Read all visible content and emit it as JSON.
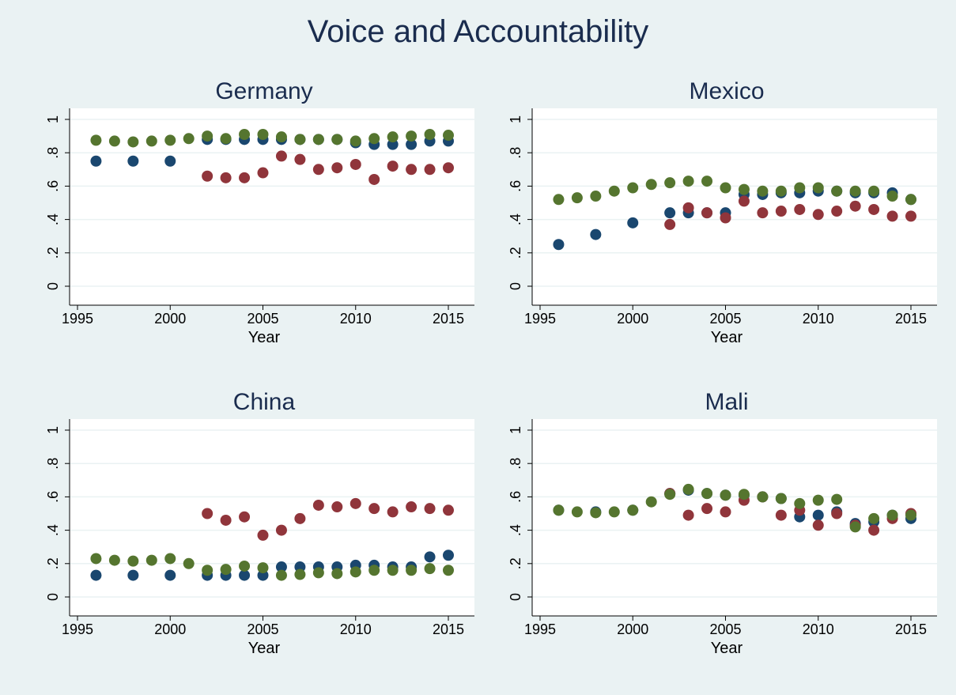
{
  "figure_title": "Voice and Accountability",
  "colors": {
    "background": "#eaf2f3",
    "plot_background": "#ffffff",
    "gridline": "#eaf2f3",
    "title_text": "#1a2c4e",
    "axis": "#000000"
  },
  "chart_data": [
    {
      "type": "scatter",
      "title": "Germany",
      "xlabel": "Year",
      "ylabel": "",
      "xlim": [
        1995,
        2015
      ],
      "ylim": [
        0,
        1
      ],
      "xticks": [
        1995,
        2000,
        2005,
        2010,
        2015
      ],
      "xtick_labels": [
        "1995",
        "2000",
        "2005",
        "2010",
        "2015"
      ],
      "yticks": [
        0,
        0.2,
        0.4,
        0.6,
        0.8,
        1
      ],
      "ytick_labels": [
        "0",
        ".2",
        ".4",
        ".6",
        ".8",
        "1"
      ],
      "grid": true,
      "series": [
        {
          "color": "#1a476f",
          "x": [
            1996,
            1998,
            2000,
            2002,
            2003,
            2004,
            2005,
            2006,
            2007,
            2008,
            2009,
            2010,
            2011,
            2012,
            2013,
            2014,
            2015
          ],
          "y": [
            0.75,
            0.75,
            0.75,
            0.88,
            0.88,
            0.88,
            0.88,
            0.88,
            0.88,
            0.88,
            0.88,
            0.86,
            0.85,
            0.85,
            0.85,
            0.87,
            0.87
          ]
        },
        {
          "color": "#90353b",
          "x": [
            2002,
            2003,
            2004,
            2005,
            2006,
            2007,
            2008,
            2009,
            2010,
            2011,
            2012,
            2013,
            2014,
            2015
          ],
          "y": [
            0.66,
            0.65,
            0.65,
            0.68,
            0.78,
            0.76,
            0.7,
            0.71,
            0.73,
            0.64,
            0.72,
            0.7,
            0.7,
            0.71
          ]
        },
        {
          "color": "#55752f",
          "x": [
            1996,
            1997,
            1998,
            1999,
            2000,
            2001,
            2002,
            2003,
            2004,
            2005,
            2006,
            2007,
            2008,
            2009,
            2010,
            2011,
            2012,
            2013,
            2014,
            2015
          ],
          "y": [
            0.875,
            0.87,
            0.865,
            0.87,
            0.875,
            0.885,
            0.9,
            0.885,
            0.91,
            0.91,
            0.895,
            0.88,
            0.88,
            0.88,
            0.87,
            0.885,
            0.895,
            0.9,
            0.91,
            0.905
          ]
        }
      ]
    },
    {
      "type": "scatter",
      "title": "Mexico",
      "xlabel": "Year",
      "ylabel": "",
      "xlim": [
        1995,
        2015
      ],
      "ylim": [
        0,
        1
      ],
      "xticks": [
        1995,
        2000,
        2005,
        2010,
        2015
      ],
      "xtick_labels": [
        "1995",
        "2000",
        "2005",
        "2010",
        "2015"
      ],
      "yticks": [
        0,
        0.2,
        0.4,
        0.6,
        0.8,
        1
      ],
      "ytick_labels": [
        "0",
        ".2",
        ".4",
        ".6",
        ".8",
        "1"
      ],
      "grid": true,
      "series": [
        {
          "color": "#1a476f",
          "x": [
            1996,
            1998,
            2000,
            2002,
            2003,
            2004,
            2005,
            2006,
            2007,
            2008,
            2009,
            2010,
            2011,
            2012,
            2013,
            2014,
            2015
          ],
          "y": [
            0.25,
            0.31,
            0.38,
            0.44,
            0.44,
            0.44,
            0.44,
            0.55,
            0.55,
            0.56,
            0.56,
            0.57,
            0.57,
            0.56,
            0.56,
            0.56,
            0.52
          ]
        },
        {
          "color": "#90353b",
          "x": [
            2002,
            2003,
            2004,
            2005,
            2006,
            2007,
            2008,
            2009,
            2010,
            2011,
            2012,
            2013,
            2014,
            2015
          ],
          "y": [
            0.37,
            0.47,
            0.44,
            0.41,
            0.51,
            0.44,
            0.45,
            0.46,
            0.43,
            0.45,
            0.48,
            0.46,
            0.42,
            0.42
          ]
        },
        {
          "color": "#55752f",
          "x": [
            1996,
            1997,
            1998,
            1999,
            2000,
            2001,
            2002,
            2003,
            2004,
            2005,
            2006,
            2007,
            2008,
            2009,
            2010,
            2011,
            2012,
            2013,
            2014,
            2015
          ],
          "y": [
            0.52,
            0.53,
            0.54,
            0.57,
            0.59,
            0.61,
            0.62,
            0.63,
            0.63,
            0.59,
            0.58,
            0.57,
            0.57,
            0.59,
            0.59,
            0.57,
            0.57,
            0.57,
            0.54,
            0.52
          ]
        }
      ]
    },
    {
      "type": "scatter",
      "title": "China",
      "xlabel": "Year",
      "ylabel": "",
      "xlim": [
        1995,
        2015
      ],
      "ylim": [
        0,
        1
      ],
      "xticks": [
        1995,
        2000,
        2005,
        2010,
        2015
      ],
      "xtick_labels": [
        "1995",
        "2000",
        "2005",
        "2010",
        "2015"
      ],
      "yticks": [
        0,
        0.2,
        0.4,
        0.6,
        0.8,
        1
      ],
      "ytick_labels": [
        "0",
        ".2",
        ".4",
        ".6",
        ".8",
        "1"
      ],
      "grid": true,
      "series": [
        {
          "color": "#1a476f",
          "x": [
            1996,
            1998,
            2000,
            2002,
            2003,
            2004,
            2005,
            2006,
            2007,
            2008,
            2009,
            2010,
            2011,
            2012,
            2013,
            2014,
            2015
          ],
          "y": [
            0.13,
            0.13,
            0.13,
            0.13,
            0.13,
            0.13,
            0.13,
            0.18,
            0.18,
            0.18,
            0.18,
            0.19,
            0.19,
            0.18,
            0.18,
            0.24,
            0.25
          ]
        },
        {
          "color": "#90353b",
          "x": [
            2002,
            2003,
            2004,
            2005,
            2006,
            2007,
            2008,
            2009,
            2010,
            2011,
            2012,
            2013,
            2014,
            2015
          ],
          "y": [
            0.5,
            0.46,
            0.48,
            0.37,
            0.4,
            0.47,
            0.55,
            0.54,
            0.56,
            0.53,
            0.51,
            0.54,
            0.53,
            0.52
          ]
        },
        {
          "color": "#55752f",
          "x": [
            1996,
            1997,
            1998,
            1999,
            2000,
            2001,
            2002,
            2003,
            2004,
            2005,
            2006,
            2007,
            2008,
            2009,
            2010,
            2011,
            2012,
            2013,
            2014,
            2015
          ],
          "y": [
            0.23,
            0.22,
            0.215,
            0.22,
            0.23,
            0.2,
            0.16,
            0.165,
            0.185,
            0.175,
            0.13,
            0.135,
            0.145,
            0.14,
            0.15,
            0.16,
            0.16,
            0.16,
            0.17,
            0.16
          ]
        }
      ]
    },
    {
      "type": "scatter",
      "title": "Mali",
      "xlabel": "Year",
      "ylabel": "",
      "xlim": [
        1995,
        2015
      ],
      "ylim": [
        0,
        1
      ],
      "xticks": [
        1995,
        2000,
        2005,
        2010,
        2015
      ],
      "xtick_labels": [
        "1995",
        "2000",
        "2005",
        "2010",
        "2015"
      ],
      "yticks": [
        0,
        0.2,
        0.4,
        0.6,
        0.8,
        1
      ],
      "ytick_labels": [
        "0",
        ".2",
        ".4",
        ".6",
        ".8",
        "1"
      ],
      "grid": true,
      "series": [
        {
          "color": "#1a476f",
          "x": [
            1996,
            1998,
            2000,
            2002,
            2003,
            2004,
            2005,
            2006,
            2007,
            2008,
            2009,
            2010,
            2011,
            2012,
            2013,
            2014,
            2015
          ],
          "y": [
            0.52,
            0.51,
            0.52,
            0.62,
            0.64,
            0.62,
            0.61,
            0.61,
            0.6,
            0.59,
            0.48,
            0.49,
            0.51,
            0.44,
            0.45,
            0.49,
            0.47
          ]
        },
        {
          "color": "#90353b",
          "x": [
            2002,
            2003,
            2004,
            2005,
            2006,
            2007,
            2008,
            2009,
            2010,
            2011,
            2012,
            2013,
            2014,
            2015
          ],
          "y": [
            0.62,
            0.49,
            0.53,
            0.51,
            0.58,
            0.6,
            0.49,
            0.52,
            0.43,
            0.5,
            0.43,
            0.4,
            0.47,
            0.5
          ]
        },
        {
          "color": "#55752f",
          "x": [
            1996,
            1997,
            1998,
            1999,
            2000,
            2001,
            2002,
            2003,
            2004,
            2005,
            2006,
            2007,
            2008,
            2009,
            2010,
            2011,
            2012,
            2013,
            2014,
            2015
          ],
          "y": [
            0.52,
            0.51,
            0.505,
            0.51,
            0.52,
            0.57,
            0.615,
            0.645,
            0.62,
            0.61,
            0.615,
            0.6,
            0.59,
            0.56,
            0.58,
            0.585,
            0.42,
            0.47,
            0.49,
            0.49
          ]
        }
      ]
    }
  ]
}
